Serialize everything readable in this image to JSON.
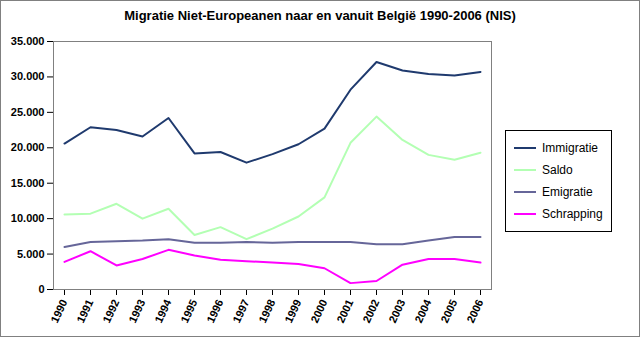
{
  "chart_data": {
    "type": "line",
    "title": "Migratie Niet-Europeanen naar en vanuit België 1990-2006 (NIS)",
    "categories": [
      "1990",
      "1991",
      "1992",
      "1993",
      "1994",
      "1995",
      "1996",
      "1997",
      "1998",
      "1999",
      "2000",
      "2001",
      "2002",
      "2003",
      "2004",
      "2005",
      "2006"
    ],
    "series": [
      {
        "name": "Immigratie",
        "color": "#1f3a6e",
        "values": [
          20600,
          22900,
          22500,
          21600,
          24200,
          19200,
          19400,
          17900,
          19100,
          20500,
          22700,
          28200,
          32100,
          30900,
          30400,
          30200,
          30700
        ]
      },
      {
        "name": "Saldo",
        "color": "#b3ffb3",
        "values": [
          10600,
          10700,
          12100,
          10000,
          11400,
          7700,
          8800,
          7100,
          8600,
          10300,
          13000,
          20700,
          24400,
          21100,
          19000,
          18300,
          19300
        ]
      },
      {
        "name": "Emigratie",
        "color": "#666699",
        "values": [
          6000,
          6700,
          6800,
          6900,
          7100,
          6600,
          6600,
          6700,
          6600,
          6700,
          6700,
          6700,
          6400,
          6400,
          6900,
          7400,
          7400
        ]
      },
      {
        "name": "Schrapping",
        "color": "#ff00ff",
        "values": [
          3900,
          5400,
          3400,
          4300,
          5600,
          4800,
          4200,
          4000,
          3800,
          3600,
          3000,
          900,
          1200,
          3500,
          4300,
          4300,
          3800
        ]
      }
    ],
    "ylim": [
      0,
      35000
    ],
    "yticks": [
      0,
      {
        "value": 5000,
        "label": "5.000"
      },
      {
        "value": 10000,
        "label": "10.000"
      },
      {
        "value": 15000,
        "label": "15.000"
      },
      {
        "value": 20000,
        "label": "20.000"
      },
      {
        "value": 25000,
        "label": "25.000"
      },
      {
        "value": 30000,
        "label": "30.000"
      },
      {
        "value": 35000,
        "label": "35.000"
      }
    ],
    "grid": false,
    "legend": "right"
  }
}
